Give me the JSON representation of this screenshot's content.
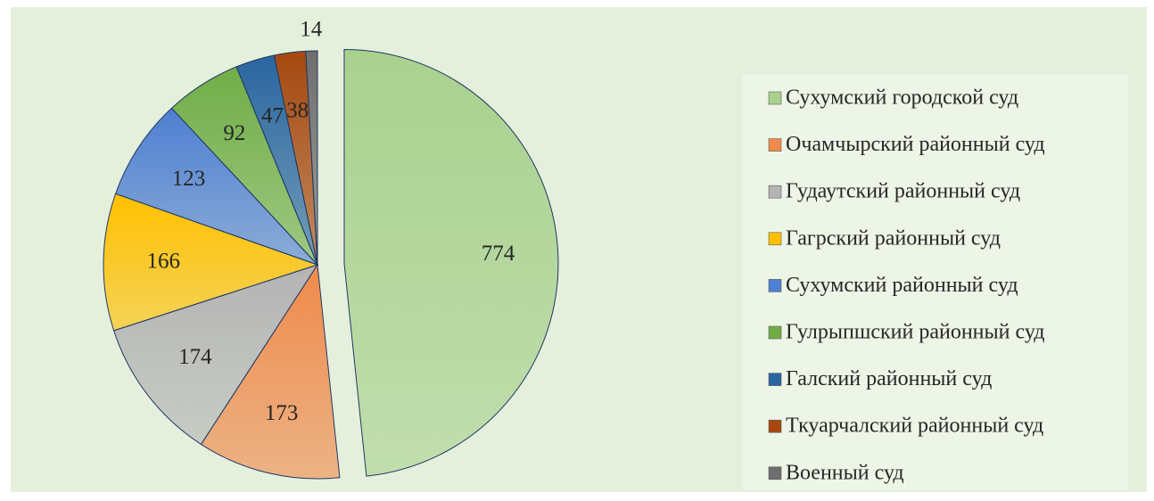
{
  "chart_data": {
    "type": "pie",
    "categories": [
      "Сухумский городской суд",
      "Очамчырский районный суд",
      "Гудаутский районный суд",
      "Гагрский районный суд",
      "Сухумский районный суд",
      "Гулрыпшский районный суд",
      "Галский районный суд",
      "Ткуарчалский районный суд",
      "Военный суд"
    ],
    "values": [
      774,
      173,
      174,
      166,
      123,
      92,
      47,
      38,
      14
    ],
    "colors": [
      "#a9d18e",
      "#f08a4b",
      "#b4b4b4",
      "#ffc000",
      "#4f7fd2",
      "#70ad47",
      "#2a66a0",
      "#a6480f",
      "#6e6e6e"
    ],
    "exploded": [
      0
    ],
    "legend": "right"
  }
}
